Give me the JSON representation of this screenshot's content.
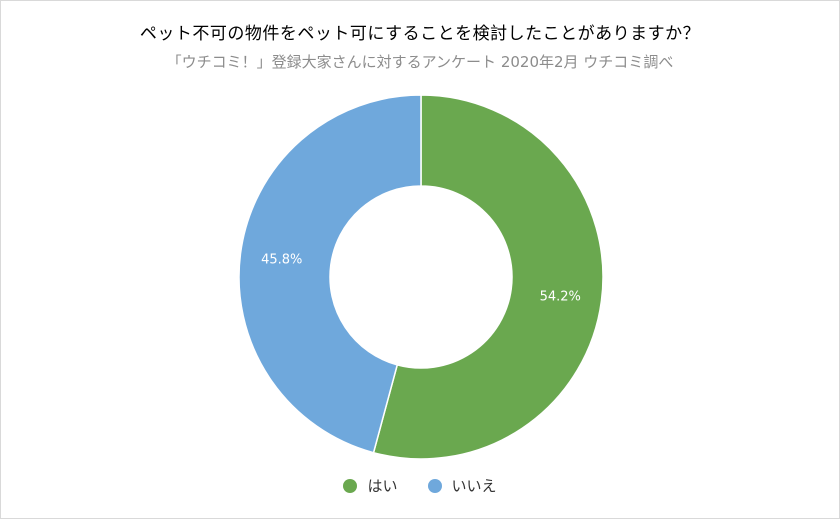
{
  "chart_data": {
    "type": "pie",
    "subtype": "donut",
    "title": "ペット不可の物件をペット可にすることを検討したことがありますか？",
    "subtitle": "「ウチコミ！」登録大家さんに対するアンケート 2020年2月 ウチコミ調べ",
    "slices": [
      {
        "label": "はい",
        "value": 54.2,
        "display": "54.2%",
        "color": "#6aa84f"
      },
      {
        "label": "いいえ",
        "value": 45.8,
        "display": "45.8%",
        "color": "#6fa8dc"
      }
    ],
    "legend_position": "bottom"
  }
}
